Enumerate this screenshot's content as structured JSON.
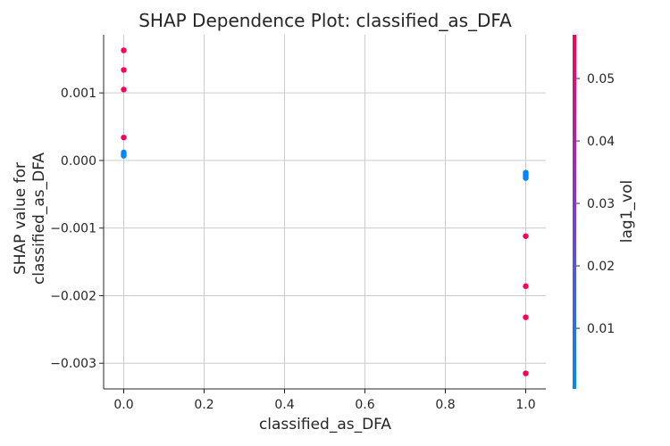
{
  "chart_data": {
    "type": "scatter",
    "title": "SHAP Dependence Plot: classified_as_DFA",
    "xlabel": "classified_as_DFA",
    "ylabel": [
      "SHAP value for",
      "classified_as_DFA"
    ],
    "xlim": [
      -0.05,
      1.05
    ],
    "ylim": [
      -0.00338,
      0.00186
    ],
    "x_ticks": [
      0.0,
      0.2,
      0.4,
      0.6,
      0.8,
      1.0
    ],
    "x_tick_labels": [
      "0.0",
      "0.2",
      "0.4",
      "0.6",
      "0.8",
      "1.0"
    ],
    "y_ticks": [
      0.001,
      0.0,
      -0.001,
      -0.002,
      -0.003
    ],
    "y_tick_labels": [
      "0.001",
      "0.000",
      "−0.001",
      "−0.002",
      "−0.003"
    ],
    "grid": true,
    "colorbar": {
      "label": "lag1_vol",
      "range": [
        0.0003,
        0.057
      ],
      "ticks": [
        0.01,
        0.02,
        0.03,
        0.04,
        0.05
      ],
      "tick_labels": [
        "0.01",
        "0.02",
        "0.03",
        "0.04",
        "0.05"
      ],
      "colors": [
        "#008afb",
        "#7a3bd6",
        "#ff0052"
      ]
    },
    "points": [
      {
        "x": 0.0,
        "y": 0.00163,
        "c": 0.056
      },
      {
        "x": 0.0,
        "y": 0.00134,
        "c": 0.056
      },
      {
        "x": 0.0,
        "y": 0.00105,
        "c": 0.056
      },
      {
        "x": 0.0,
        "y": 0.00034,
        "c": 0.055
      },
      {
        "x": 0.0,
        "y": 0.00012,
        "c": 0.003
      },
      {
        "x": 0.0,
        "y": 0.0001,
        "c": 0.002
      },
      {
        "x": 0.0,
        "y": 8e-05,
        "c": 0.002
      },
      {
        "x": 0.0,
        "y": 7e-05,
        "c": 0.001
      },
      {
        "x": 1.0,
        "y": -0.00018,
        "c": 0.002
      },
      {
        "x": 1.0,
        "y": -0.0002,
        "c": 0.002
      },
      {
        "x": 1.0,
        "y": -0.00022,
        "c": 0.001
      },
      {
        "x": 1.0,
        "y": -0.00024,
        "c": 0.002
      },
      {
        "x": 1.0,
        "y": -0.00026,
        "c": 0.001
      },
      {
        "x": 1.0,
        "y": -0.00112,
        "c": 0.055
      },
      {
        "x": 1.0,
        "y": -0.00186,
        "c": 0.055
      },
      {
        "x": 1.0,
        "y": -0.00232,
        "c": 0.056
      },
      {
        "x": 1.0,
        "y": -0.00315,
        "c": 0.056
      }
    ]
  }
}
